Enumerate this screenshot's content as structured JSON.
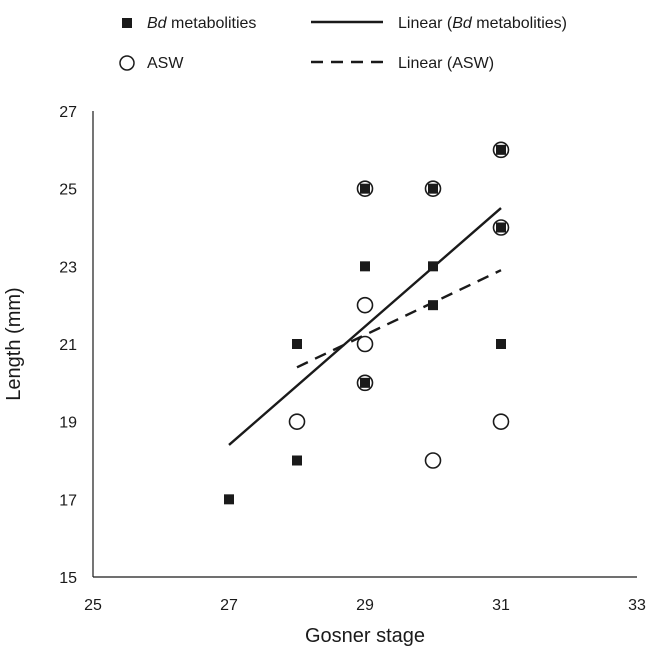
{
  "chart_data": {
    "type": "scatter",
    "title": "",
    "xlabel": "Gosner stage",
    "ylabel": "Length (mm)",
    "xlim": [
      25,
      33
    ],
    "ylim": [
      15,
      27
    ],
    "xticks": [
      25,
      27,
      29,
      31,
      33
    ],
    "yticks": [
      15,
      17,
      19,
      21,
      23,
      25,
      27
    ],
    "grid": false,
    "legend_position": "top",
    "series": [
      {
        "name": "Bd metabolities",
        "marker": "filled-square",
        "color": "#1a1a1a",
        "points": [
          {
            "x": 27,
            "y": 17
          },
          {
            "x": 28,
            "y": 18
          },
          {
            "x": 28,
            "y": 21
          },
          {
            "x": 29,
            "y": 20
          },
          {
            "x": 29,
            "y": 23
          },
          {
            "x": 29,
            "y": 25
          },
          {
            "x": 30,
            "y": 22
          },
          {
            "x": 30,
            "y": 23
          },
          {
            "x": 30,
            "y": 25
          },
          {
            "x": 31,
            "y": 21
          },
          {
            "x": 31,
            "y": 24
          },
          {
            "x": 31,
            "y": 26
          }
        ]
      },
      {
        "name": "ASW",
        "marker": "open-circle",
        "color": "#1a1a1a",
        "points": [
          {
            "x": 28,
            "y": 19
          },
          {
            "x": 29,
            "y": 20
          },
          {
            "x": 29,
            "y": 21
          },
          {
            "x": 29,
            "y": 22
          },
          {
            "x": 29,
            "y": 25
          },
          {
            "x": 30,
            "y": 18
          },
          {
            "x": 30,
            "y": 25
          },
          {
            "x": 31,
            "y": 19
          },
          {
            "x": 31,
            "y": 24
          },
          {
            "x": 31,
            "y": 26
          }
        ]
      }
    ],
    "trendlines": [
      {
        "name": "Linear (Bd metabolities)",
        "style": "solid",
        "color": "#1a1a1a",
        "start": {
          "x": 27,
          "y": 18.4
        },
        "end": {
          "x": 31,
          "y": 24.5
        }
      },
      {
        "name": "Linear (ASW)",
        "style": "dashed",
        "color": "#1a1a1a",
        "start": {
          "x": 28,
          "y": 20.4
        },
        "end": {
          "x": 31,
          "y": 22.9
        }
      }
    ],
    "legend": [
      {
        "prefix": "",
        "italic": "Bd",
        "suffix": " metabolities",
        "symbol": "filled-square"
      },
      {
        "prefix": "Linear (",
        "italic": "Bd",
        "suffix": " metabolities)",
        "symbol": "solid-line"
      },
      {
        "prefix": "",
        "italic": "",
        "suffix": "ASW",
        "symbol": "open-circle"
      },
      {
        "prefix": "",
        "italic": "",
        "suffix": "Linear (ASW)",
        "symbol": "dashed-line"
      }
    ]
  }
}
